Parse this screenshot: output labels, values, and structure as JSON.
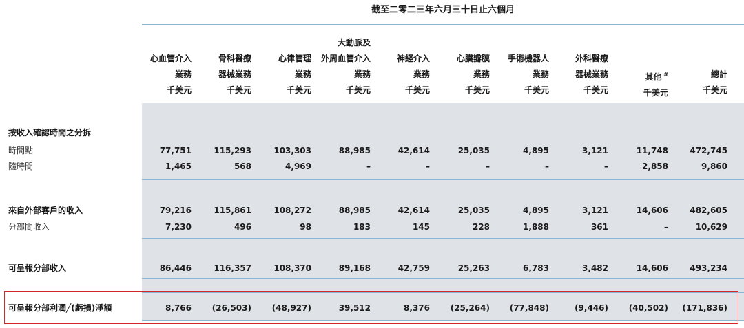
{
  "period_heading": "截至二零二三年六月三十日止六個月",
  "columns": [
    {
      "lines": [
        "心血管介入",
        "業務",
        "千美元"
      ]
    },
    {
      "lines": [
        "骨科醫療",
        "器械業務",
        "千美元"
      ]
    },
    {
      "lines": [
        "心律管理",
        "業務",
        "千美元"
      ]
    },
    {
      "lines": [
        "大動脈及",
        "外周血管介入",
        "業務",
        "千美元"
      ]
    },
    {
      "lines": [
        "神經介入",
        "業務",
        "千美元"
      ]
    },
    {
      "lines": [
        "心臟瓣膜",
        "業務",
        "千美元"
      ]
    },
    {
      "lines": [
        "手術機器人",
        "業務",
        "千美元"
      ]
    },
    {
      "lines": [
        "外科醫療",
        "器械業務",
        "千美元"
      ]
    },
    {
      "lines": [
        "其他",
        "千美元"
      ],
      "note": "#"
    },
    {
      "lines": [
        "總計",
        "千美元"
      ]
    }
  ],
  "section_heading": "按收入確認時間之分拆",
  "rows": [
    {
      "label": "時間點",
      "values": [
        "77,751",
        "115,293",
        "103,303",
        "88,985",
        "42,614",
        "25,035",
        "4,895",
        "3,121",
        "11,748",
        "472,745"
      ]
    },
    {
      "label": "隨時間",
      "values": [
        "1,465",
        "568",
        "4,969",
        "–",
        "–",
        "–",
        "–",
        "–",
        "2,858",
        "9,860"
      ]
    },
    {
      "label": "來自外部客戶的收入",
      "values": [
        "79,216",
        "115,861",
        "108,272",
        "88,985",
        "42,614",
        "25,035",
        "4,895",
        "3,121",
        "14,606",
        "482,605"
      ]
    },
    {
      "label": "分部間收入",
      "values": [
        "7,230",
        "496",
        "98",
        "183",
        "145",
        "228",
        "1,888",
        "361",
        "–",
        "10,629"
      ]
    },
    {
      "label": "可呈報分部收入",
      "values": [
        "86,446",
        "116,357",
        "108,370",
        "89,168",
        "42,759",
        "25,263",
        "6,783",
        "3,482",
        "14,606",
        "493,234"
      ]
    },
    {
      "label": "可呈報分部利潤╱(虧損)淨額",
      "values": [
        "8,766",
        "(26,503)",
        "(48,927)",
        "39,512",
        "8,376",
        "(25,264)",
        "(77,848)",
        "(9,446)",
        "(40,502)",
        "(171,836)"
      ]
    }
  ]
}
